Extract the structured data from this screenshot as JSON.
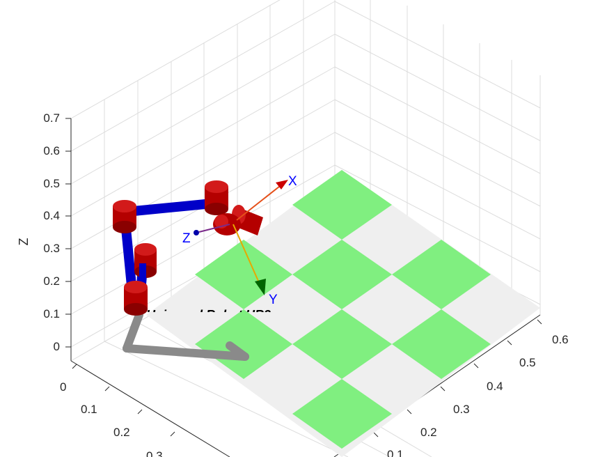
{
  "figure": {
    "robot_name": "Universal Robot UR3",
    "z_axis_label": "Z",
    "colors": {
      "floor_green": "#80ef80",
      "floor_grey": "#efefef",
      "link": "#0000c8",
      "joint": "#b40000",
      "base": "#8a8a8a",
      "frame_label": "#0000ff",
      "frame_x_arrow": "#e5501a",
      "frame_y_arrow": "#e6a800",
      "frame_z_arrow": "#7a2a8a"
    }
  },
  "axes": {
    "z_ticks": [
      "0",
      "0.1",
      "0.2",
      "0.3",
      "0.4",
      "0.5",
      "0.6",
      "0.7"
    ],
    "right_ticks": [
      "0.1",
      "0.2",
      "0.3",
      "0.4",
      "0.5",
      "0.6"
    ],
    "left_ticks": [
      "0",
      "0.1",
      "0.2",
      "0.3"
    ]
  },
  "tool_frame": {
    "x_label": "X",
    "y_label": "Y",
    "z_label": "Z"
  }
}
